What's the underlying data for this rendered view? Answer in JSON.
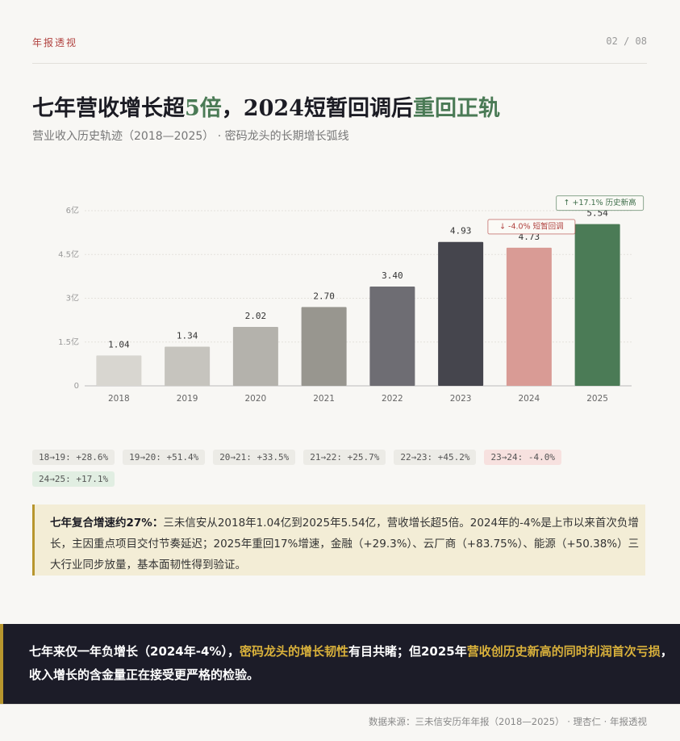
{
  "header": {
    "section": "年报透视",
    "page": "02 / 08"
  },
  "title": [
    {
      "text": "七年营收增长超"
    },
    {
      "text": "5倍",
      "color": "#4a7a55"
    },
    {
      "text": "，2024短暂回调后"
    },
    {
      "text": "重回正轨",
      "color": "#4a7a55"
    }
  ],
  "subtitle": "营业收入历史轨迹（2018—2025） · 密码龙头的长期增长弧线",
  "chart_data": {
    "type": "bar",
    "categories": [
      "2018",
      "2019",
      "2020",
      "2021",
      "2022",
      "2023",
      "2024",
      "2025"
    ],
    "values": [
      1.04,
      1.34,
      2.02,
      2.7,
      3.4,
      4.93,
      4.73,
      5.54
    ],
    "value_labels": [
      "1.04",
      "1.34",
      "2.02",
      "2.70",
      "3.40",
      "4.93",
      "4.73",
      "5.54"
    ],
    "colors": [
      "#d8d6d0",
      "#c6c4be",
      "#b4b2ac",
      "#98968f",
      "#6e6d73",
      "#45454d",
      "#d99b95",
      "#4b7b56"
    ],
    "ylim": [
      0,
      6
    ],
    "yticks": [
      0,
      {
        "value": 1.5,
        "label": "1.5亿"
      },
      {
        "value": 3,
        "label": "3亿"
      },
      {
        "value": 4.5,
        "label": "4.5亿"
      },
      {
        "value": 6,
        "label": "6亿"
      }
    ],
    "grid": true,
    "annotations": [
      {
        "text": "↓ -4.0% 短暂回调",
        "category": "2024",
        "color": "#b0413e"
      },
      {
        "text": "↑ +17.1% 历史新高",
        "category": "2025",
        "color": "#3f6e4a"
      }
    ]
  },
  "growth_tags": [
    {
      "text": "18→19: +28.6%",
      "color": "#ecebe6"
    },
    {
      "text": "19→20: +51.4%",
      "color": "#ecebe6"
    },
    {
      "text": "20→21: +33.5%",
      "color": "#ecebe6"
    },
    {
      "text": "21→22: +25.7%",
      "color": "#ecebe6"
    },
    {
      "text": "22→23: +45.2%",
      "color": "#ecebe6"
    },
    {
      "text": "23→24: -4.0%",
      "color": "#f7e1df"
    },
    {
      "text": "24→25: +17.1%",
      "color": "#e1eee2"
    }
  ],
  "callout": {
    "lead": "七年复合增速约27%：",
    "body": "三未信安从2018年1.04亿到2025年5.54亿，营收增长超5倍。2024年的-4%是上市以来首次负增长，主因重点项目交付节奏延迟；2025年重回17%增速，金融（+29.3%）、云厂商（+83.75%）、能源（+50.38%）三大行业同步放量，基本面韧性得到验证。"
  },
  "banner": [
    {
      "text": "七年来仅一年负增长（2024年-4%），"
    },
    {
      "text": "密码龙头的增长韧性",
      "color": "#d9b13b"
    },
    {
      "text": "有目共睹；但2025年"
    },
    {
      "text": "营收创历史新高的同时利润首次亏损",
      "color": "#d9b13b"
    },
    {
      "text": "，收入增长的含金量正在接受更严格的检验。"
    }
  ],
  "footer": "数据来源：三未信安历年年报（2018—2025） · 理杏仁 · 年报透视"
}
